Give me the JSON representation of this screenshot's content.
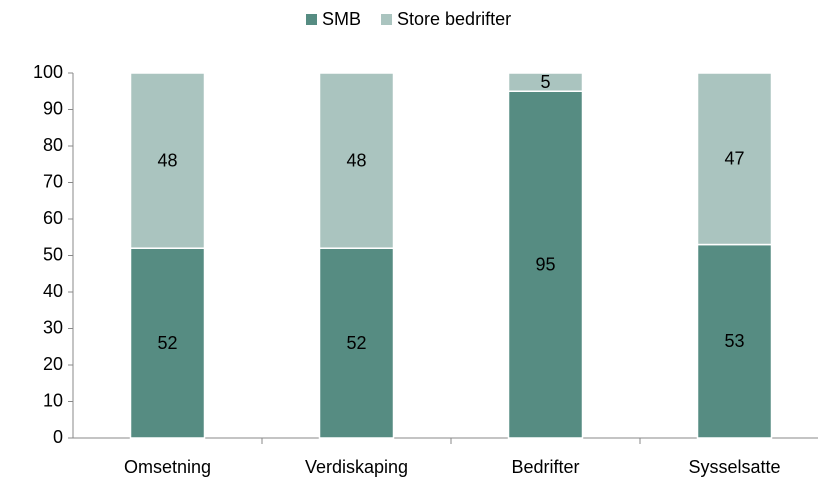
{
  "chart_data": {
    "type": "stacked_bar",
    "categories": [
      "Omsetning",
      "Verdiskaping",
      "Bedrifter",
      "Sysselsatte"
    ],
    "series": [
      {
        "name": "SMB",
        "color": "#568c82",
        "values": [
          52,
          52,
          95,
          53
        ]
      },
      {
        "name": "Store bedrifter",
        "color": "#aac4bf",
        "values": [
          48,
          48,
          5,
          47
        ]
      }
    ],
    "ylim": [
      0,
      100
    ],
    "yticks": [
      0,
      10,
      20,
      30,
      40,
      50,
      60,
      70,
      80,
      90,
      100
    ],
    "legend": "top",
    "grid": false
  }
}
